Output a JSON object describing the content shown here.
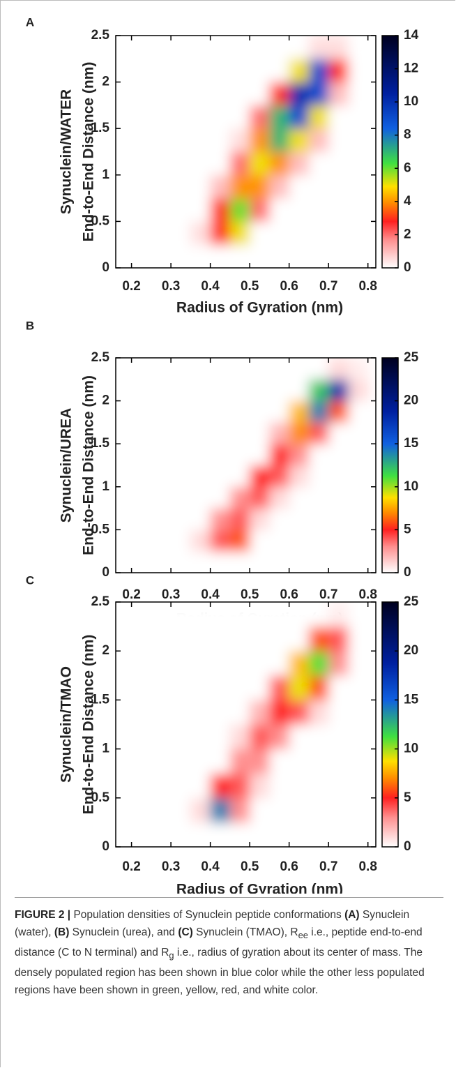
{
  "chart_data": [
    {
      "type": "heatmap",
      "panel_label": "A",
      "ylabel_lines": [
        "Synuclein/WATER",
        "End-to-End Distance (nm)"
      ],
      "xlabel": "Radius of Gyration (nm)",
      "xlim": [
        0.16,
        0.82
      ],
      "ylim": [
        0,
        2.5
      ],
      "xticks": [
        0.2,
        0.3,
        0.4,
        0.5,
        0.6,
        0.7,
        0.8
      ],
      "yticks": [
        0,
        0.5,
        1,
        1.5,
        2,
        2.5
      ],
      "zlim": [
        0,
        14
      ],
      "zticks": [
        0,
        2,
        4,
        6,
        8,
        10,
        12,
        14
      ],
      "colorscale": [
        [
          0,
          "#ffffff"
        ],
        [
          0.12,
          "#ff9090"
        ],
        [
          0.2,
          "#ff2020"
        ],
        [
          0.28,
          "#ff8c00"
        ],
        [
          0.35,
          "#ffe000"
        ],
        [
          0.45,
          "#40e040"
        ],
        [
          0.6,
          "#1060e0"
        ],
        [
          0.75,
          "#0020a0"
        ],
        [
          1,
          "#000020"
        ]
      ],
      "x": [
        0.225,
        0.275,
        0.325,
        0.375,
        0.425,
        0.475,
        0.525,
        0.575,
        0.625,
        0.675,
        0.725,
        0.775
      ],
      "y": [
        0.125,
        0.375,
        0.625,
        0.875,
        1.125,
        1.375,
        1.625,
        1.875,
        2.125,
        2.375
      ],
      "z": [
        [
          0,
          0,
          0,
          0,
          0,
          0,
          0,
          0,
          0,
          0,
          0,
          0
        ],
        [
          0,
          0,
          0,
          0.5,
          3,
          5,
          0,
          0,
          0,
          0,
          0,
          0
        ],
        [
          0,
          0,
          0,
          0,
          3,
          6,
          2,
          0,
          0,
          0,
          0,
          0
        ],
        [
          0,
          0,
          0,
          0,
          1,
          4,
          4,
          1,
          0,
          0,
          0,
          0
        ],
        [
          0,
          0,
          0,
          0,
          0,
          2,
          5,
          4,
          1,
          0,
          0,
          0
        ],
        [
          0,
          0,
          0,
          0,
          0,
          0.5,
          4,
          7,
          5,
          1,
          0,
          0
        ],
        [
          0,
          0,
          0,
          0,
          0,
          0,
          2,
          7,
          9,
          5,
          0,
          0
        ],
        [
          0,
          0,
          0,
          0,
          0,
          0,
          0,
          3,
          10,
          9,
          1,
          0
        ],
        [
          0,
          0,
          0,
          0,
          0,
          0,
          0,
          0,
          5,
          9,
          3,
          0
        ],
        [
          0,
          0,
          0,
          0,
          0,
          0,
          0,
          0,
          0,
          0.5,
          0.5,
          0
        ]
      ]
    },
    {
      "type": "heatmap",
      "panel_label": "B",
      "ylabel_lines": [
        "Synuclein/UREA",
        "End-to-End Distance (nm)"
      ],
      "xlabel": "Radius of Gyration (nm)",
      "xlim": [
        0.16,
        0.82
      ],
      "ylim": [
        0,
        2.5
      ],
      "xticks": [
        0.2,
        0.3,
        0.4,
        0.5,
        0.6,
        0.7,
        0.8
      ],
      "yticks": [
        0,
        0.5,
        1,
        1.5,
        2,
        2.5
      ],
      "zlim": [
        0,
        25
      ],
      "zticks": [
        0,
        5,
        10,
        15,
        20,
        25
      ],
      "colorscale": [
        [
          0,
          "#ffffff"
        ],
        [
          0.12,
          "#ff9090"
        ],
        [
          0.2,
          "#ff2020"
        ],
        [
          0.28,
          "#ff8c00"
        ],
        [
          0.35,
          "#ffe000"
        ],
        [
          0.45,
          "#40e040"
        ],
        [
          0.6,
          "#1060e0"
        ],
        [
          0.75,
          "#0020a0"
        ],
        [
          1,
          "#000020"
        ]
      ],
      "x": [
        0.225,
        0.275,
        0.325,
        0.375,
        0.425,
        0.475,
        0.525,
        0.575,
        0.625,
        0.675,
        0.725,
        0.775
      ],
      "y": [
        0.125,
        0.375,
        0.625,
        0.875,
        1.125,
        1.375,
        1.625,
        1.875,
        2.125,
        2.375
      ],
      "z": [
        [
          0,
          0,
          0,
          0,
          0,
          0,
          0,
          0,
          0,
          0,
          0,
          0
        ],
        [
          0,
          0,
          0,
          1,
          4,
          6,
          0,
          0,
          0,
          0,
          0,
          0
        ],
        [
          0,
          0,
          0,
          0,
          3,
          4,
          1,
          0,
          0,
          0,
          0,
          0
        ],
        [
          0,
          0,
          0,
          0,
          0,
          3,
          4,
          1,
          0,
          0,
          0,
          0
        ],
        [
          0,
          0,
          0,
          0,
          0,
          0,
          5,
          4,
          1,
          0,
          0,
          0
        ],
        [
          0,
          0,
          0,
          0,
          0,
          0,
          0,
          5,
          3,
          0,
          0,
          0
        ],
        [
          0,
          0,
          0,
          0,
          0,
          0,
          0,
          2,
          7,
          4,
          0,
          0
        ],
        [
          0,
          0,
          0,
          0,
          0,
          0,
          0,
          0,
          8,
          14,
          6,
          0
        ],
        [
          0,
          0,
          0,
          0,
          0,
          0,
          0,
          0,
          0,
          12,
          18,
          1
        ],
        [
          0,
          0,
          0,
          0,
          0,
          0,
          0,
          0,
          0,
          0,
          1,
          0.5
        ]
      ]
    },
    {
      "type": "heatmap",
      "panel_label": "C",
      "ylabel_lines": [
        "Synuclein/TMAO",
        "End-to-End Distance (nm)"
      ],
      "xlabel": "Radius of Gyration (nm)",
      "xlim": [
        0.16,
        0.82
      ],
      "ylim": [
        0,
        2.5
      ],
      "xticks": [
        0.2,
        0.3,
        0.4,
        0.5,
        0.6,
        0.7,
        0.8
      ],
      "yticks": [
        0,
        0.5,
        1,
        1.5,
        2,
        2.5
      ],
      "zlim": [
        0,
        25
      ],
      "zticks": [
        0,
        5,
        10,
        15,
        20,
        25
      ],
      "colorscale": [
        [
          0,
          "#ffffff"
        ],
        [
          0.12,
          "#ff9090"
        ],
        [
          0.2,
          "#ff2020"
        ],
        [
          0.28,
          "#ff8c00"
        ],
        [
          0.35,
          "#ffe000"
        ],
        [
          0.45,
          "#40e040"
        ],
        [
          0.6,
          "#1060e0"
        ],
        [
          0.75,
          "#0020a0"
        ],
        [
          1,
          "#000020"
        ]
      ],
      "x": [
        0.225,
        0.275,
        0.325,
        0.375,
        0.425,
        0.475,
        0.525,
        0.575,
        0.625,
        0.675,
        0.725,
        0.775
      ],
      "y": [
        0.125,
        0.375,
        0.625,
        0.875,
        1.125,
        1.375,
        1.625,
        1.875,
        2.125,
        2.375
      ],
      "z": [
        [
          0,
          0,
          0,
          0,
          0,
          0,
          0,
          0,
          0,
          0,
          0,
          0
        ],
        [
          0,
          0,
          0,
          1,
          14,
          3,
          0,
          0,
          0,
          0,
          0,
          0
        ],
        [
          0,
          0,
          0,
          0,
          5,
          4,
          1,
          0,
          0,
          0,
          0,
          0
        ],
        [
          0,
          0,
          0,
          0,
          0,
          3,
          3,
          0,
          0,
          0,
          0,
          0
        ],
        [
          0,
          0,
          0,
          0,
          0,
          1,
          4,
          3,
          0,
          0,
          0,
          0
        ],
        [
          0,
          0,
          0,
          0,
          0,
          0,
          2,
          5,
          4,
          1,
          0,
          0
        ],
        [
          0,
          0,
          0,
          0,
          0,
          0,
          0,
          4,
          9,
          6,
          0,
          0
        ],
        [
          0,
          0,
          0,
          0,
          0,
          0,
          0,
          0,
          8,
          11,
          3,
          0
        ],
        [
          0,
          0,
          0,
          0,
          0,
          0,
          0,
          0,
          0,
          6,
          4,
          0
        ],
        [
          0,
          0,
          0,
          0,
          0,
          0,
          0,
          0,
          0,
          0,
          0.5,
          0
        ]
      ]
    }
  ],
  "caption": {
    "label": "FIGURE 2 |",
    "parts": [
      " Population densities of Synuclein peptide conformations ",
      "(A)",
      " Synuclein (water), ",
      "(B)",
      " Synuclein (urea), and ",
      "(C)",
      " Synuclein (TMAO), R",
      "ee",
      " i.e., peptide end-to-end distance (C to N terminal) and R",
      "g",
      " i.e., radius of gyration about its center of mass. The densely populated region has been shown in blue color while the other less populated regions have been shown in green, yellow, red, and white color."
    ]
  }
}
